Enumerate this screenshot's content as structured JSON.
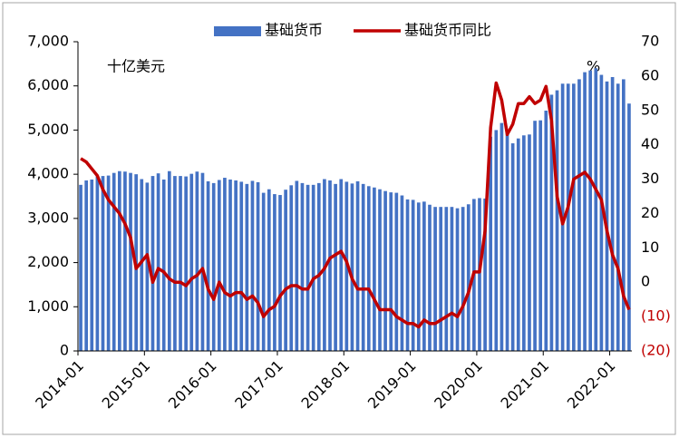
{
  "chart_data": {
    "type": "bar_line",
    "categories": [
      "2014-01",
      null,
      null,
      null,
      null,
      null,
      null,
      null,
      null,
      null,
      null,
      null,
      "2015-01",
      null,
      null,
      null,
      null,
      null,
      null,
      null,
      null,
      null,
      null,
      null,
      "2016-01",
      null,
      null,
      null,
      null,
      null,
      null,
      null,
      null,
      null,
      null,
      null,
      "2017-01",
      null,
      null,
      null,
      null,
      null,
      null,
      null,
      null,
      null,
      null,
      null,
      "2018-01",
      null,
      null,
      null,
      null,
      null,
      null,
      null,
      null,
      null,
      null,
      null,
      "2019-01",
      null,
      null,
      null,
      null,
      null,
      null,
      null,
      null,
      null,
      null,
      null,
      "2020-01",
      null,
      null,
      null,
      null,
      null,
      null,
      null,
      null,
      null,
      null,
      null,
      "2021-01",
      null,
      null,
      null,
      null,
      null,
      null,
      null,
      null,
      null,
      null,
      null,
      "2022-01",
      null,
      null,
      null
    ],
    "series": [
      {
        "name": "基础货币",
        "type": "bar",
        "color": "#4472c4",
        "axis": "y",
        "values": [
          3760,
          3860,
          3880,
          3950,
          3960,
          3970,
          4030,
          4070,
          4060,
          4030,
          4000,
          3890,
          3810,
          3960,
          4020,
          3880,
          4070,
          3960,
          3960,
          3950,
          4010,
          4060,
          4030,
          3840,
          3800,
          3870,
          3920,
          3880,
          3860,
          3830,
          3780,
          3850,
          3820,
          3580,
          3660,
          3550,
          3530,
          3650,
          3750,
          3850,
          3800,
          3760,
          3760,
          3800,
          3890,
          3860,
          3780,
          3890,
          3830,
          3790,
          3840,
          3780,
          3730,
          3700,
          3660,
          3620,
          3590,
          3580,
          3520,
          3430,
          3420,
          3360,
          3380,
          3310,
          3260,
          3260,
          3260,
          3260,
          3230,
          3260,
          3320,
          3440,
          3460,
          3450,
          4850,
          5000,
          5160,
          4960,
          4700,
          4810,
          4880,
          4900,
          5210,
          5220,
          5440,
          5800,
          5900,
          6050,
          6050,
          6050,
          6150,
          6310,
          6350,
          6400,
          6250,
          6100,
          6200,
          6050,
          6150,
          5600
        ]
      },
      {
        "name": "基础货币同比",
        "type": "line",
        "color": "#c00000",
        "axis": "y2",
        "values": [
          36,
          35,
          33,
          31,
          27,
          24,
          22,
          20,
          17,
          13,
          4,
          6,
          8,
          0,
          4,
          3,
          1,
          0,
          0,
          -1,
          1,
          2,
          4,
          -2,
          -5,
          0,
          -3,
          -4,
          -3,
          -3,
          -5,
          -4,
          -6,
          -10,
          -8,
          -7,
          -4,
          -2,
          -1,
          -1,
          -2,
          -2,
          1,
          2,
          4,
          7,
          8,
          9,
          6,
          1,
          -2,
          -2,
          -2,
          -5,
          -8,
          -8,
          -8,
          -10,
          -11,
          -12,
          -12,
          -13,
          -11,
          -12,
          -12,
          -11,
          -10,
          -9,
          -10,
          -7,
          -3,
          3,
          3,
          15,
          45,
          58,
          53,
          43,
          46,
          52,
          52,
          54,
          52,
          53,
          57,
          47,
          25,
          17,
          22,
          30,
          31,
          32,
          30,
          27,
          24,
          15,
          8,
          4,
          -4,
          -8
        ]
      }
    ],
    "ylim": [
      0,
      7000
    ],
    "yticks": [
      0,
      {
        "value": 1000,
        "label": "1,000"
      },
      {
        "value": 2000,
        "label": "2,000"
      },
      {
        "value": 3000,
        "label": "3,000"
      },
      {
        "value": 4000,
        "label": "4,000"
      },
      {
        "value": 5000,
        "label": "5,000"
      },
      {
        "value": 6000,
        "label": "6,000"
      },
      {
        "value": 7000,
        "label": "7,000"
      }
    ],
    "y2lim": [
      -20,
      70
    ],
    "y2ticks": [
      70,
      60,
      50,
      40,
      30,
      20,
      10,
      0,
      {
        "value": -10,
        "label": "(10)"
      },
      {
        "value": -20,
        "label": "(20)"
      }
    ],
    "y2_negative_label_color": "#c00000",
    "annotations": [
      "十亿美元",
      "%"
    ],
    "legend": "top"
  }
}
